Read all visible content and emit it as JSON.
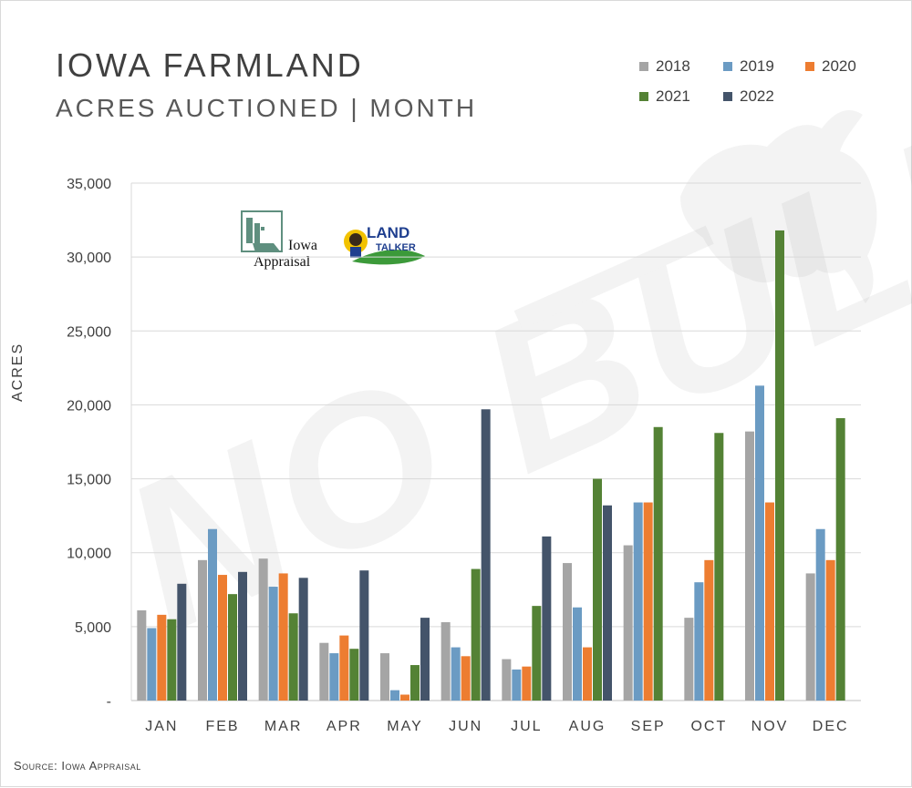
{
  "title": "IOWA FARMLAND",
  "subtitle": "ACRES AUCTIONED | MONTH",
  "ylabel": "ACRES",
  "source": "Source: Iowa Appraisal",
  "watermark": "NO BULL",
  "logos": {
    "iowa_appraisal": [
      "Iowa",
      "Appraisal"
    ],
    "land_talker": [
      "LAND",
      "TALKER"
    ]
  },
  "colors": {
    "2018": "#a5a5a5",
    "2019": "#6b9bc3",
    "2020": "#ed7d31",
    "2021": "#548235",
    "2022": "#44546a",
    "grid": "#d9d9d9",
    "text": "#404040"
  },
  "chart_data": {
    "type": "bar",
    "title": "IOWA FARMLAND",
    "subtitle": "ACRES AUCTIONED | MONTH",
    "xlabel": "",
    "ylabel": "ACRES",
    "ylim": [
      0,
      35000
    ],
    "yticks": [
      0,
      5000,
      10000,
      15000,
      20000,
      25000,
      30000,
      35000
    ],
    "ytick_labels": [
      "-",
      "5,000",
      "10,000",
      "15,000",
      "20,000",
      "25,000",
      "30,000",
      "35,000"
    ],
    "categories": [
      "JAN",
      "FEB",
      "MAR",
      "APR",
      "MAY",
      "JUN",
      "JUL",
      "AUG",
      "SEP",
      "OCT",
      "NOV",
      "DEC"
    ],
    "grid": true,
    "legend_position": "top-right",
    "series": [
      {
        "name": "2018",
        "color": "#a5a5a5",
        "values": [
          6100,
          9500,
          9600,
          3900,
          3200,
          5300,
          2800,
          9300,
          10500,
          5600,
          18200,
          8600
        ]
      },
      {
        "name": "2019",
        "color": "#6b9bc3",
        "values": [
          4900,
          11600,
          7700,
          3200,
          700,
          3600,
          2100,
          6300,
          13400,
          8000,
          21300,
          11600
        ]
      },
      {
        "name": "2020",
        "color": "#ed7d31",
        "values": [
          5800,
          8500,
          8600,
          4400,
          400,
          3000,
          2300,
          3600,
          13400,
          9500,
          13400,
          9500
        ]
      },
      {
        "name": "2021",
        "color": "#548235",
        "values": [
          5500,
          7200,
          5900,
          3500,
          2400,
          8900,
          6400,
          15000,
          18500,
          18100,
          31800,
          19100
        ]
      },
      {
        "name": "2022",
        "color": "#44546a",
        "values": [
          7900,
          8700,
          8300,
          8800,
          5600,
          19700,
          11100,
          13200,
          null,
          null,
          null,
          null
        ]
      }
    ]
  }
}
